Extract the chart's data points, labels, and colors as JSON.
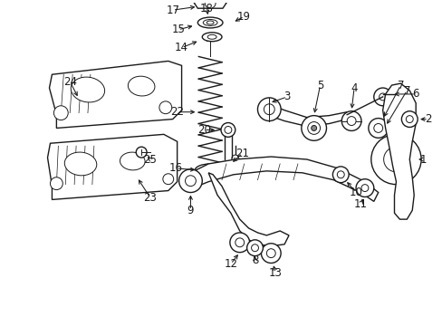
{
  "bg_color": "#ffffff",
  "line_color": "#1a1a1a",
  "fig_width": 4.89,
  "fig_height": 3.6,
  "dpi": 100,
  "img_data": null
}
